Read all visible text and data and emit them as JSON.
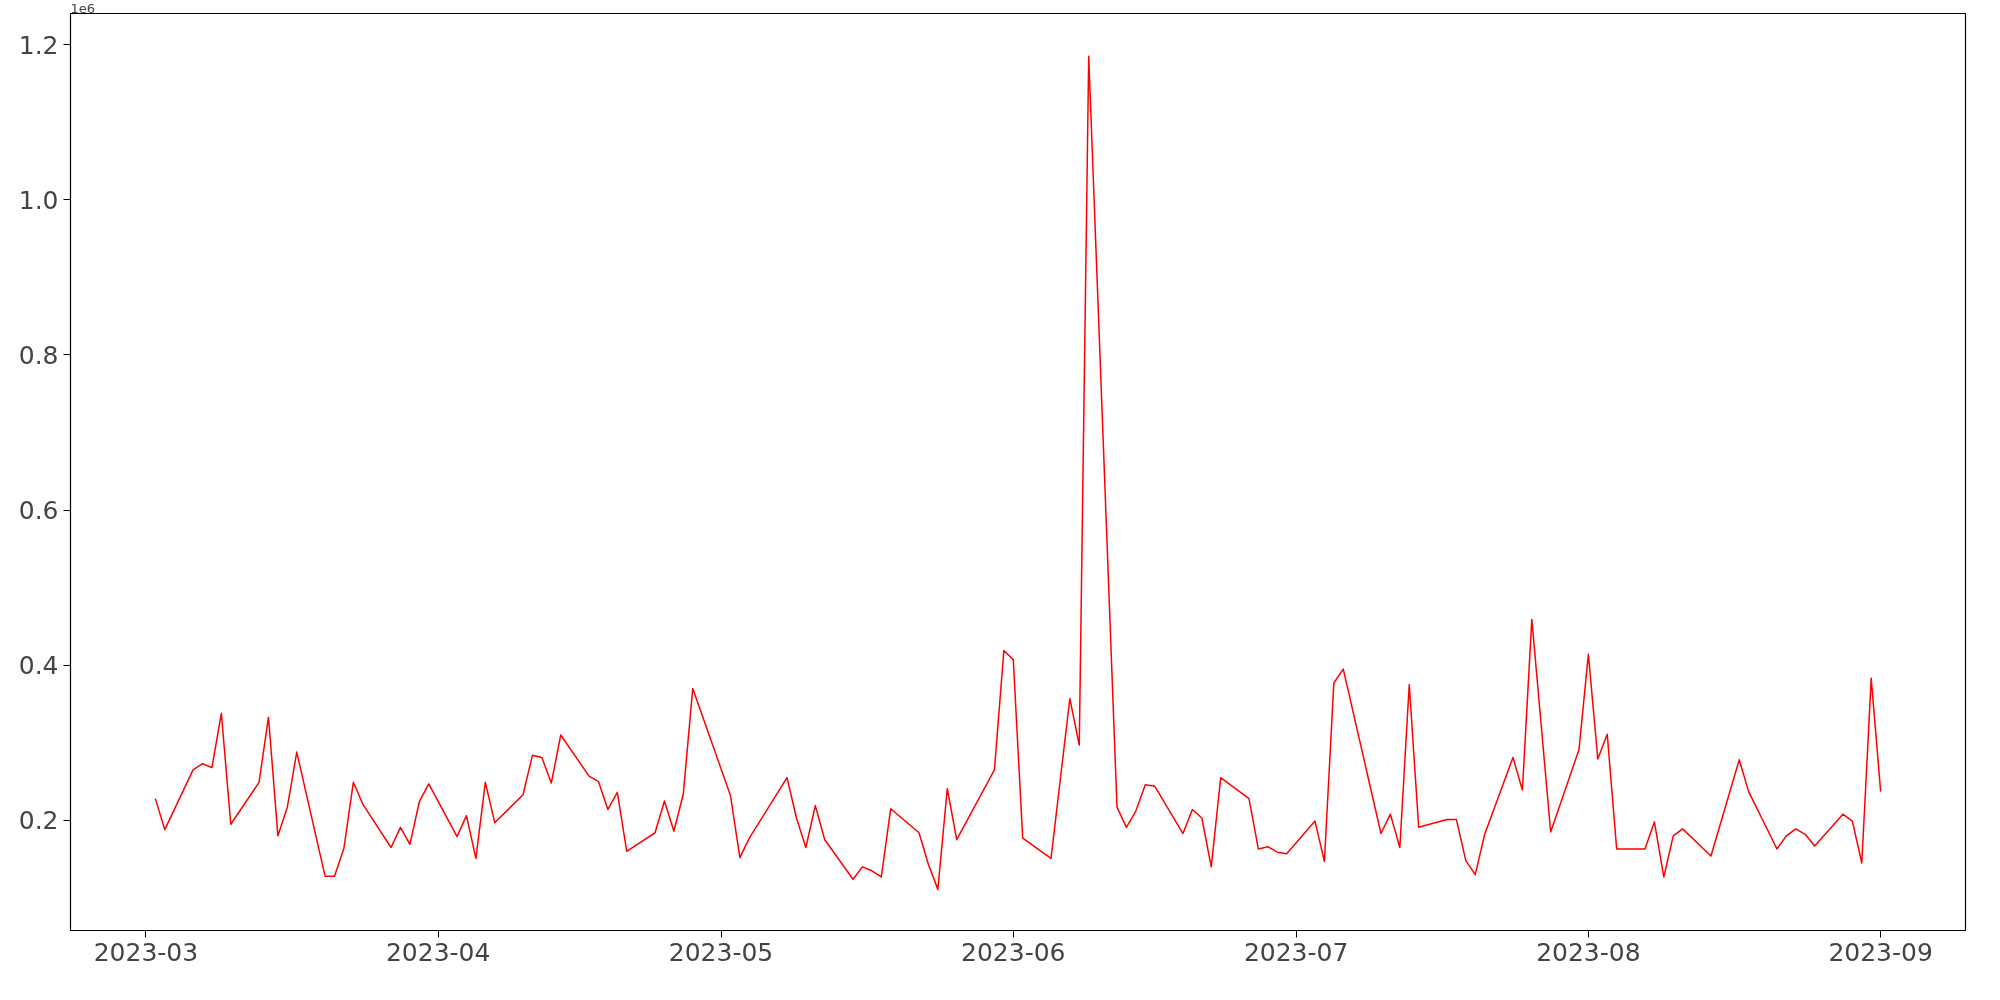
{
  "chart_data": {
    "type": "line",
    "color": "#ff0000",
    "grid": false,
    "marker": "none",
    "line_style": "solid",
    "annotations": [
      "1e6"
    ],
    "xlim": [
      "2023-02-21",
      "2023-09-10"
    ],
    "xticks": [
      "2023-03",
      "2023-04",
      "2023-05",
      "2023-06",
      "2023-07",
      "2023-08",
      "2023-09"
    ],
    "ylim": [
      0.058,
      1.24
    ],
    "yticks": [
      0.2,
      0.4,
      0.6,
      0.8,
      {
        "value": 1.0,
        "label": "1.0"
      },
      1.2
    ],
    "x": [
      "2023-03-02",
      "2023-03-03",
      "2023-03-06",
      "2023-03-07",
      "2023-03-08",
      "2023-03-09",
      "2023-03-10",
      "2023-03-13",
      "2023-03-14",
      "2023-03-15",
      "2023-03-16",
      "2023-03-17",
      "2023-03-20",
      "2023-03-21",
      "2023-03-22",
      "2023-03-23",
      "2023-03-24",
      "2023-03-27",
      "2023-03-28",
      "2023-03-29",
      "2023-03-30",
      "2023-03-31",
      "2023-04-03",
      "2023-04-04",
      "2023-04-05",
      "2023-04-06",
      "2023-04-07",
      "2023-04-10",
      "2023-04-11",
      "2023-04-12",
      "2023-04-13",
      "2023-04-14",
      "2023-04-17",
      "2023-04-18",
      "2023-04-19",
      "2023-04-20",
      "2023-04-21",
      "2023-04-24",
      "2023-04-25",
      "2023-04-26",
      "2023-04-27",
      "2023-04-28",
      "2023-05-02",
      "2023-05-03",
      "2023-05-04",
      "2023-05-08",
      "2023-05-09",
      "2023-05-10",
      "2023-05-11",
      "2023-05-12",
      "2023-05-15",
      "2023-05-16",
      "2023-05-17",
      "2023-05-18",
      "2023-05-19",
      "2023-05-22",
      "2023-05-23",
      "2023-05-24",
      "2023-05-25",
      "2023-05-26",
      "2023-05-30",
      "2023-05-31",
      "2023-06-01",
      "2023-06-02",
      "2023-06-05",
      "2023-06-07",
      "2023-06-08",
      "2023-06-09",
      "2023-06-12",
      "2023-06-13",
      "2023-06-14",
      "2023-06-15",
      "2023-06-16",
      "2023-06-19",
      "2023-06-20",
      "2023-06-21",
      "2023-06-22",
      "2023-06-23",
      "2023-06-26",
      "2023-06-27",
      "2023-06-28",
      "2023-06-29",
      "2023-06-30",
      "2023-07-03",
      "2023-07-04",
      "2023-07-05",
      "2023-07-06",
      "2023-07-10",
      "2023-07-11",
      "2023-07-12",
      "2023-07-13",
      "2023-07-14",
      "2023-07-17",
      "2023-07-18",
      "2023-07-19",
      "2023-07-20",
      "2023-07-21",
      "2023-07-24",
      "2023-07-25",
      "2023-07-26",
      "2023-07-28",
      "2023-07-31",
      "2023-08-01",
      "2023-08-02",
      "2023-08-03",
      "2023-08-04",
      "2023-08-07",
      "2023-08-08",
      "2023-08-09",
      "2023-08-10",
      "2023-08-11",
      "2023-08-14",
      "2023-08-17",
      "2023-08-18",
      "2023-08-21",
      "2023-08-22",
      "2023-08-23",
      "2023-08-24",
      "2023-08-25",
      "2023-08-28",
      "2023-08-29",
      "2023-08-30",
      "2023-08-31",
      "2023-09-01"
    ],
    "values": [
      0.228,
      0.188,
      0.265,
      0.273,
      0.268,
      0.338,
      0.195,
      0.249,
      0.333,
      0.18,
      0.217,
      0.288,
      0.128,
      0.128,
      0.164,
      0.249,
      0.221,
      0.165,
      0.191,
      0.169,
      0.224,
      0.247,
      0.179,
      0.206,
      0.151,
      0.249,
      0.197,
      0.233,
      0.284,
      0.281,
      0.248,
      0.31,
      0.257,
      0.25,
      0.214,
      0.236,
      0.16,
      0.184,
      0.225,
      0.186,
      0.234,
      0.37,
      0.232,
      0.152,
      0.177,
      0.255,
      0.203,
      0.165,
      0.219,
      0.175,
      0.124,
      0.14,
      0.135,
      0.127,
      0.215,
      0.184,
      0.143,
      0.111,
      0.241,
      0.175,
      0.265,
      0.419,
      0.407,
      0.177,
      0.151,
      0.357,
      0.297,
      1.185,
      0.217,
      0.191,
      0.212,
      0.246,
      0.244,
      0.183,
      0.214,
      0.203,
      0.14,
      0.255,
      0.228,
      0.163,
      0.166,
      0.159,
      0.157,
      0.199,
      0.147,
      0.377,
      0.395,
      0.183,
      0.208,
      0.165,
      0.375,
      0.191,
      0.201,
      0.201,
      0.148,
      0.13,
      0.182,
      0.281,
      0.239,
      0.459,
      0.185,
      0.291,
      0.414,
      0.279,
      0.311,
      0.163,
      0.163,
      0.198,
      0.127,
      0.18,
      0.189,
      0.154,
      0.278,
      0.237,
      0.163,
      0.18,
      0.189,
      0.182,
      0.167,
      0.208,
      0.199,
      0.145,
      0.383,
      0.237
    ]
  }
}
